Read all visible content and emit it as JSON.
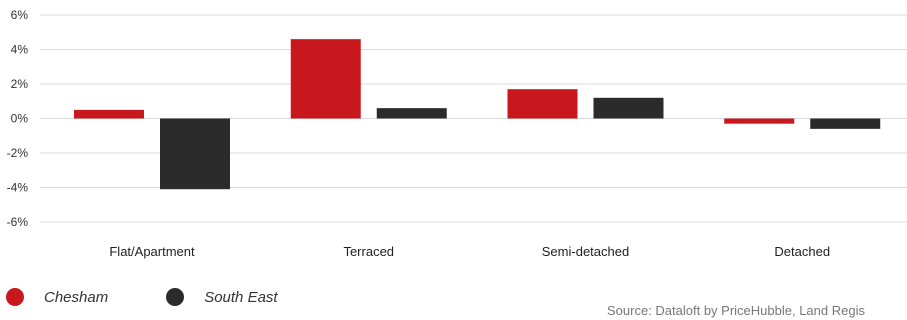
{
  "colors": {
    "chesham": "#c8181e",
    "south_east": "#2b2b2b",
    "grid": "#d9d9d9"
  },
  "legend": {
    "items": [
      {
        "label": "Chesham",
        "color": "#c8181e"
      },
      {
        "label": "South East",
        "color": "#2b2b2b"
      }
    ]
  },
  "source_text": "Source: Dataloft by PriceHubble, Land Regis",
  "chart_data": {
    "type": "bar",
    "categories": [
      "Flat/Apartment",
      "Terraced",
      "Semi-detached",
      "Detached"
    ],
    "series": [
      {
        "name": "Chesham",
        "values": [
          0.5,
          4.6,
          1.7,
          -0.3
        ]
      },
      {
        "name": "South East",
        "values": [
          -4.1,
          0.6,
          1.2,
          -0.6
        ]
      }
    ],
    "ylim": [
      -6,
      6
    ],
    "yticks": [
      6,
      4,
      2,
      0,
      -2,
      -4,
      -6
    ],
    "ytick_labels": [
      "6%",
      "4%",
      "2%",
      "0%",
      "-2%",
      "-4%",
      "-6%"
    ],
    "grid": true,
    "legend_position": "bottom-left"
  }
}
